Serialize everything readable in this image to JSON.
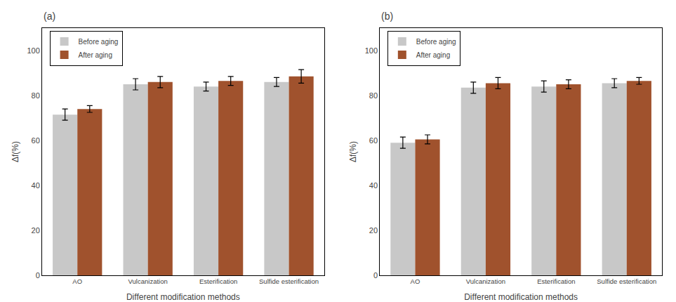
{
  "chart_data": [
    {
      "type": "bar",
      "title": "(a)",
      "categories": [
        "AO",
        "Vulcanization",
        "Esterification",
        "Sulfide esterification"
      ],
      "series": [
        {
          "name": "Before aging",
          "color": "#c8c8c8",
          "values": [
            71.5,
            85.0,
            84.0,
            86.0
          ],
          "errors": [
            2.5,
            2.5,
            2.0,
            2.0
          ]
        },
        {
          "name": "After aging",
          "color": "#a0522d",
          "values": [
            74.0,
            86.0,
            86.5,
            88.5
          ],
          "errors": [
            1.5,
            2.5,
            2.0,
            3.0
          ]
        }
      ],
      "xlabel": "Different modification methods",
      "ylabel": "Δf(%)",
      "ylim": [
        0,
        110
      ],
      "yticks": [
        0,
        20,
        40,
        60,
        80,
        100
      ],
      "grid": false,
      "legend": "upper left"
    },
    {
      "type": "bar",
      "title": "(b)",
      "categories": [
        "AO",
        "Vulcanization",
        "Esterification",
        "Sulfide esterification"
      ],
      "series": [
        {
          "name": "Before aging",
          "color": "#c8c8c8",
          "values": [
            59.0,
            83.5,
            84.0,
            85.5
          ],
          "errors": [
            2.5,
            2.5,
            2.5,
            2.0
          ]
        },
        {
          "name": "After aging",
          "color": "#a0522d",
          "values": [
            60.5,
            85.5,
            85.0,
            86.5
          ],
          "errors": [
            2.0,
            2.5,
            2.0,
            1.5
          ]
        }
      ],
      "xlabel": "Different modification methods",
      "ylabel": "Δf(%)",
      "ylim": [
        0,
        110
      ],
      "yticks": [
        0,
        20,
        40,
        60,
        80,
        100
      ],
      "grid": false,
      "legend": "upper left"
    }
  ]
}
